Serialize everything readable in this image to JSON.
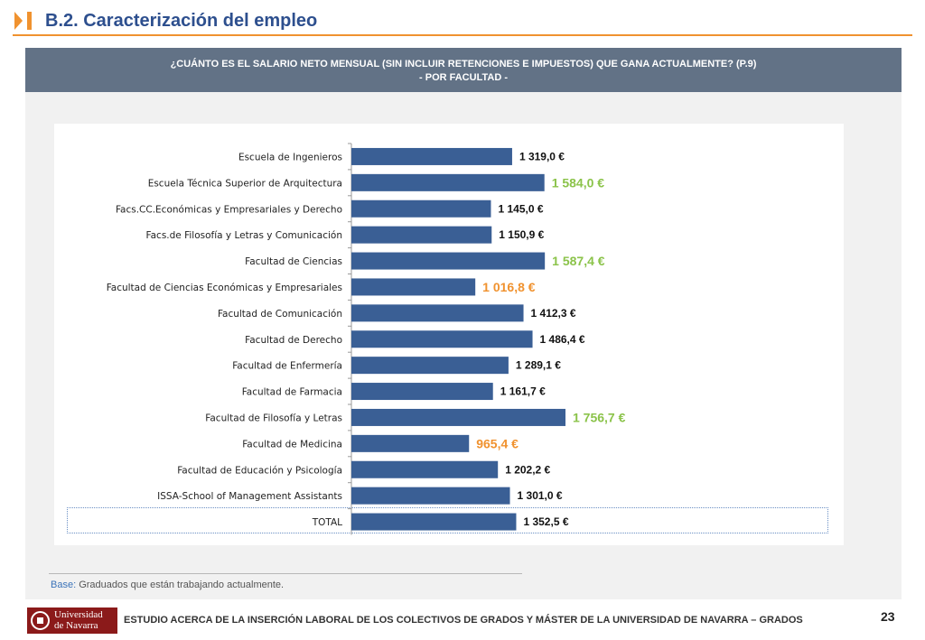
{
  "header": {
    "title": "B.2. Caracterización del empleo",
    "icon": "chevron-bar-icon",
    "accent_color": "#f0922f",
    "title_color": "#2d4f8e"
  },
  "question": {
    "line1": "¿CUÁNTO ES EL SALARIO NETO MENSUAL (SIN INCLUIR RETENCIONES E IMPUESTOS) QUE GANA ACTUALMENTE? (P.9)",
    "line2": "- POR FACULTAD -"
  },
  "chart_data": {
    "type": "bar",
    "orientation": "horizontal",
    "bar_color": "#3a5f95",
    "categories": [
      "Escuela de Ingenieros",
      "Escuela Técnica Superior de Arquitectura",
      "Facs.CC.Económicas y Empresariales y Derecho",
      "Facs.de Filosofía y Letras y Comunicación",
      "Facultad de Ciencias",
      "Facultad de Ciencias Económicas y Empresariales",
      "Facultad de Comunicación",
      "Facultad de Derecho",
      "Facultad de Enfermería",
      "Facultad de Farmacia",
      "Facultad de Filosofía y Letras",
      "Facultad de Medicina",
      "Facultad de Educación y Psicología",
      "ISSA-School of Management Assistants",
      "TOTAL"
    ],
    "values": [
      1319.0,
      1584.0,
      1145.0,
      1150.9,
      1587.4,
      1016.8,
      1412.3,
      1486.4,
      1289.1,
      1161.7,
      1756.7,
      965.4,
      1202.2,
      1301.0,
      1352.5
    ],
    "labels": [
      "1 319,0 €",
      "1 584,0 €",
      "1 145,0 €",
      "1 150,9 €",
      "1 587,4 €",
      "1 016,8 €",
      "1 412,3 €",
      "1 486,4 €",
      "1 289,1 €",
      "1 161,7 €",
      "1 756,7 €",
      "965,4 €",
      "1 202,2 €",
      "1 301,0 €",
      "1 352,5 €"
    ],
    "label_colors": [
      "#111111",
      "#8bc34a",
      "#111111",
      "#111111",
      "#8bc34a",
      "#f0922f",
      "#111111",
      "#111111",
      "#111111",
      "#111111",
      "#8bc34a",
      "#f0922f",
      "#111111",
      "#111111",
      "#111111"
    ],
    "xlim": [
      0,
      1900
    ],
    "grid": false,
    "legend": "none"
  },
  "base": {
    "label": "Base:",
    "text": "Graduados que están trabajando actualmente."
  },
  "footer": {
    "logo_line1": "Universidad",
    "logo_line2": "de Navarra",
    "title": "ESTUDIO ACERCA DE LA INSERCIÓN LABORAL DE LOS COLECTIVOS DE GRADOS Y MÁSTER DE LA UNIVERSIDAD DE NAVARRA – GRADOS",
    "page": "23"
  }
}
